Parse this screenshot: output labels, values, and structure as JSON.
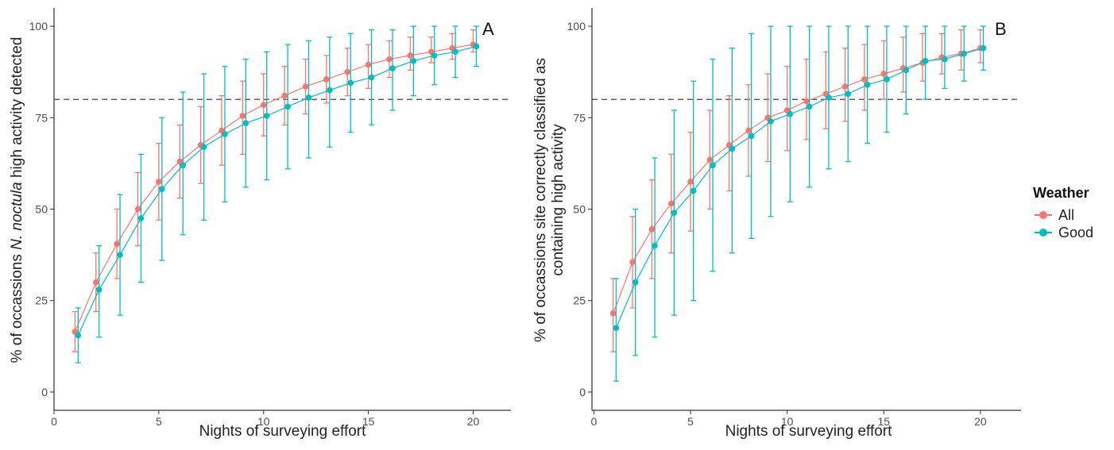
{
  "legend": {
    "title": "Weather",
    "items": [
      {
        "label": "All",
        "color": "#F8766D"
      },
      {
        "label": "Good",
        "color": "#00BFC4"
      }
    ]
  },
  "chart_data": [
    {
      "type": "line",
      "panel_label": "A",
      "xlabel": "Nights of surveying effort",
      "ylabel_parts": [
        "% of occassions ",
        "N. noctula",
        " high activity detected"
      ],
      "xlim": [
        0,
        21.8
      ],
      "ylim": [
        -5,
        105
      ],
      "xticks": [
        0,
        5,
        10,
        15,
        20
      ],
      "yticks": [
        0,
        25,
        50,
        75,
        100
      ],
      "reference_line_y": 80,
      "grid": false,
      "series": [
        {
          "name": "All",
          "color": "#F8766D",
          "x": [
            1,
            2,
            3,
            4,
            5,
            6,
            7,
            8,
            9,
            10,
            11,
            12,
            13,
            14,
            15,
            16,
            17,
            18,
            19,
            20
          ],
          "y": [
            16.5,
            30,
            40.5,
            50,
            57.5,
            63,
            67.5,
            71.5,
            75.5,
            78.5,
            81,
            83.5,
            85.5,
            87.5,
            89.5,
            91,
            92,
            93,
            94,
            95
          ],
          "ymin": [
            11,
            22,
            31,
            40,
            47,
            53,
            57,
            62,
            65,
            70,
            73,
            76,
            79,
            81,
            83,
            86,
            88,
            90,
            91,
            93
          ],
          "ymax": [
            22,
            38,
            50,
            60,
            68,
            73,
            78,
            81,
            85,
            87,
            89,
            91,
            92,
            94,
            95,
            96,
            97,
            97,
            98,
            99
          ]
        },
        {
          "name": "Good",
          "color": "#00BFC4",
          "x": [
            1.15,
            2.15,
            3.15,
            4.15,
            5.15,
            6.15,
            7.15,
            8.15,
            9.15,
            10.15,
            11.15,
            12.15,
            13.15,
            14.15,
            15.15,
            16.15,
            17.15,
            18.15,
            19.15,
            20.15
          ],
          "y": [
            15.5,
            28,
            37.5,
            47.5,
            55.5,
            62,
            67,
            70.5,
            73.5,
            75.5,
            78,
            80.5,
            82.5,
            84.5,
            86,
            88.5,
            90.5,
            92,
            93,
            94.5
          ],
          "ymin": [
            8,
            15,
            21,
            30,
            36,
            43,
            47,
            52,
            56,
            58,
            61,
            64,
            67,
            71,
            73,
            77,
            81,
            84,
            86,
            89
          ],
          "ymax": [
            23,
            40,
            54,
            65,
            75,
            82,
            87,
            89,
            91,
            93,
            95,
            96,
            97,
            98,
            99,
            99,
            100,
            100,
            100,
            100
          ]
        }
      ]
    },
    {
      "type": "line",
      "panel_label": "B",
      "xlabel": "Nights of surveying effort",
      "ylabel_lines": [
        "% of occassions site correctly classified as",
        "containing high activity"
      ],
      "xlim": [
        -0.1,
        22.1
      ],
      "ylim": [
        -5,
        105
      ],
      "xticks": [
        0,
        5,
        10,
        15,
        20
      ],
      "yticks": [
        0,
        25,
        50,
        75,
        100
      ],
      "reference_line_y": 80,
      "grid": false,
      "series": [
        {
          "name": "All",
          "color": "#F8766D",
          "x": [
            1,
            2,
            3,
            4,
            5,
            6,
            7,
            8,
            9,
            10,
            11,
            12,
            13,
            14,
            15,
            16,
            17,
            18,
            19,
            20
          ],
          "y": [
            21.5,
            35.5,
            44.5,
            51.5,
            57.5,
            63.5,
            67.5,
            71.5,
            75,
            77,
            79.5,
            81.5,
            83.5,
            85.5,
            87,
            88.5,
            90,
            91.5,
            92.5,
            94
          ],
          "ymin": [
            11,
            23,
            31,
            38,
            44,
            50,
            55,
            59,
            63,
            66,
            69,
            72,
            74,
            77,
            80,
            82,
            85,
            87,
            88,
            90
          ],
          "ymax": [
            31,
            48,
            58,
            65,
            71,
            77,
            81,
            84,
            87,
            89,
            91,
            93,
            94,
            95,
            96,
            97,
            98,
            98,
            99,
            99
          ]
        },
        {
          "name": "Good",
          "color": "#00BFC4",
          "x": [
            1.15,
            2.15,
            3.15,
            4.15,
            5.15,
            6.15,
            7.15,
            8.15,
            9.15,
            10.15,
            11.15,
            12.15,
            13.15,
            14.15,
            15.15,
            16.15,
            17.15,
            18.15,
            19.15,
            20.15
          ],
          "y": [
            17.5,
            30,
            40,
            49,
            55,
            62,
            66.5,
            70,
            74,
            76,
            78,
            80.5,
            81.5,
            84,
            85.5,
            88,
            90.5,
            91,
            92.5,
            94
          ],
          "ymin": [
            3,
            10,
            15,
            21,
            25,
            33,
            38,
            42,
            48,
            52,
            56,
            61,
            63,
            68,
            71,
            76,
            80,
            83,
            85,
            88
          ],
          "ymax": [
            31,
            50,
            64,
            77,
            85,
            91,
            94,
            98,
            100,
            100,
            100,
            100,
            100,
            100,
            100,
            100,
            100,
            100,
            100,
            100
          ]
        }
      ]
    }
  ]
}
